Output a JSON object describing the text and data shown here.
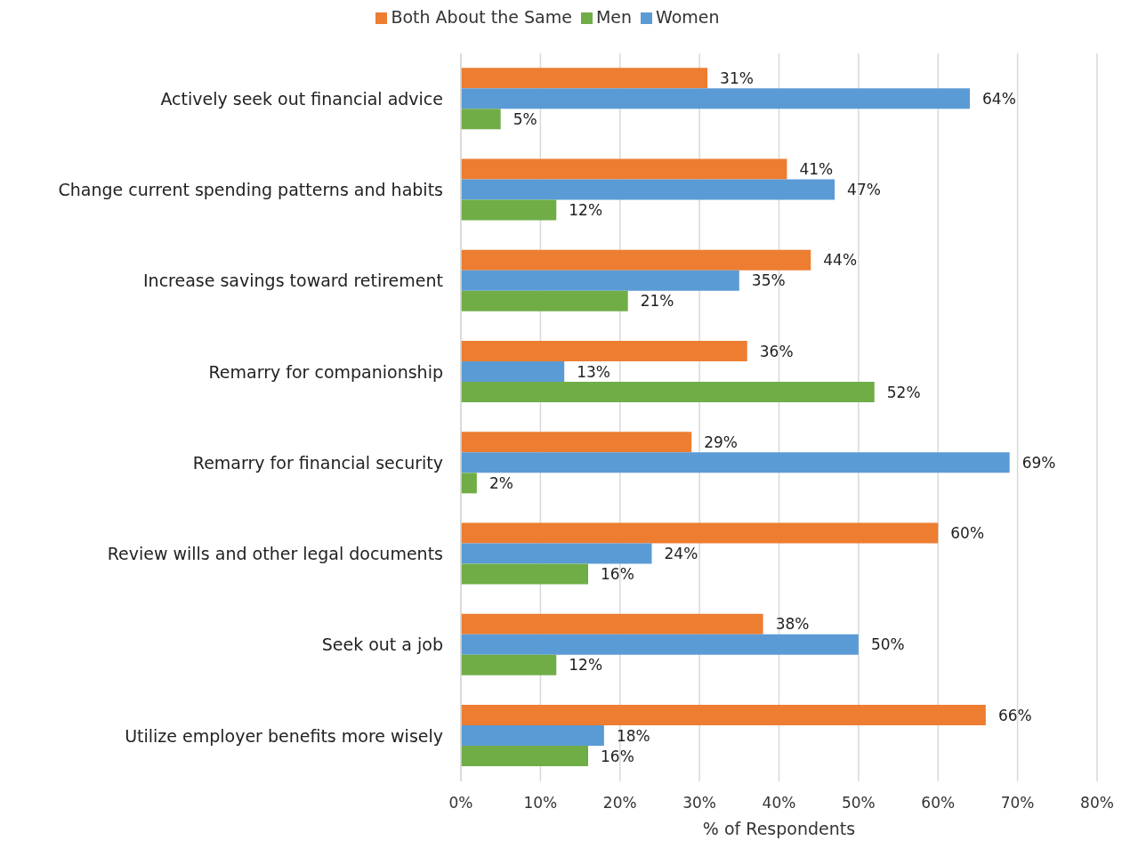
{
  "chart_data": {
    "type": "bar",
    "orientation": "horizontal",
    "xlabel": "% of Respondents",
    "categories": [
      "Actively seek out financial advice",
      "Change current spending patterns and habits",
      "Increase savings toward retirement",
      "Remarry for companionship",
      "Remarry for financial security",
      "Review wills and other legal documents",
      "Seek out a job",
      "Utilize employer benefits more wisely"
    ],
    "series": [
      {
        "name": "Both About the Same",
        "color": "#ed7d31",
        "values": [
          31,
          41,
          44,
          36,
          29,
          60,
          38,
          66
        ],
        "value_labels": [
          "31%",
          "41%",
          "44%",
          "36%",
          "29%",
          "60%",
          "38%",
          "66%"
        ]
      },
      {
        "name": "Women",
        "color": "#5b9bd5",
        "values": [
          64,
          47,
          35,
          13,
          69,
          24,
          50,
          18
        ],
        "value_labels": [
          "64%",
          "47%",
          "35%",
          "13%",
          "69%",
          "24%",
          "50%",
          "18%"
        ]
      },
      {
        "name": "Men",
        "color": "#70ad47",
        "values": [
          5,
          12,
          21,
          52,
          2,
          16,
          12,
          16
        ],
        "value_labels": [
          "5%",
          "12%",
          "21%",
          "52%",
          "2%",
          "16%",
          "12%",
          "16%"
        ]
      }
    ],
    "xlim": [
      0,
      80
    ],
    "xticks": [
      {
        "value": 0,
        "label": "0%"
      },
      {
        "value": 10,
        "label": "10%"
      },
      {
        "value": 20,
        "label": "20%"
      },
      {
        "value": 30,
        "label": "30%"
      },
      {
        "value": 40,
        "label": "40%"
      },
      {
        "value": 50,
        "label": "50%"
      },
      {
        "value": 60,
        "label": "60%"
      },
      {
        "value": 70,
        "label": "70%"
      },
      {
        "value": 80,
        "label": "80%"
      }
    ],
    "grid": "x",
    "legend": "top"
  }
}
